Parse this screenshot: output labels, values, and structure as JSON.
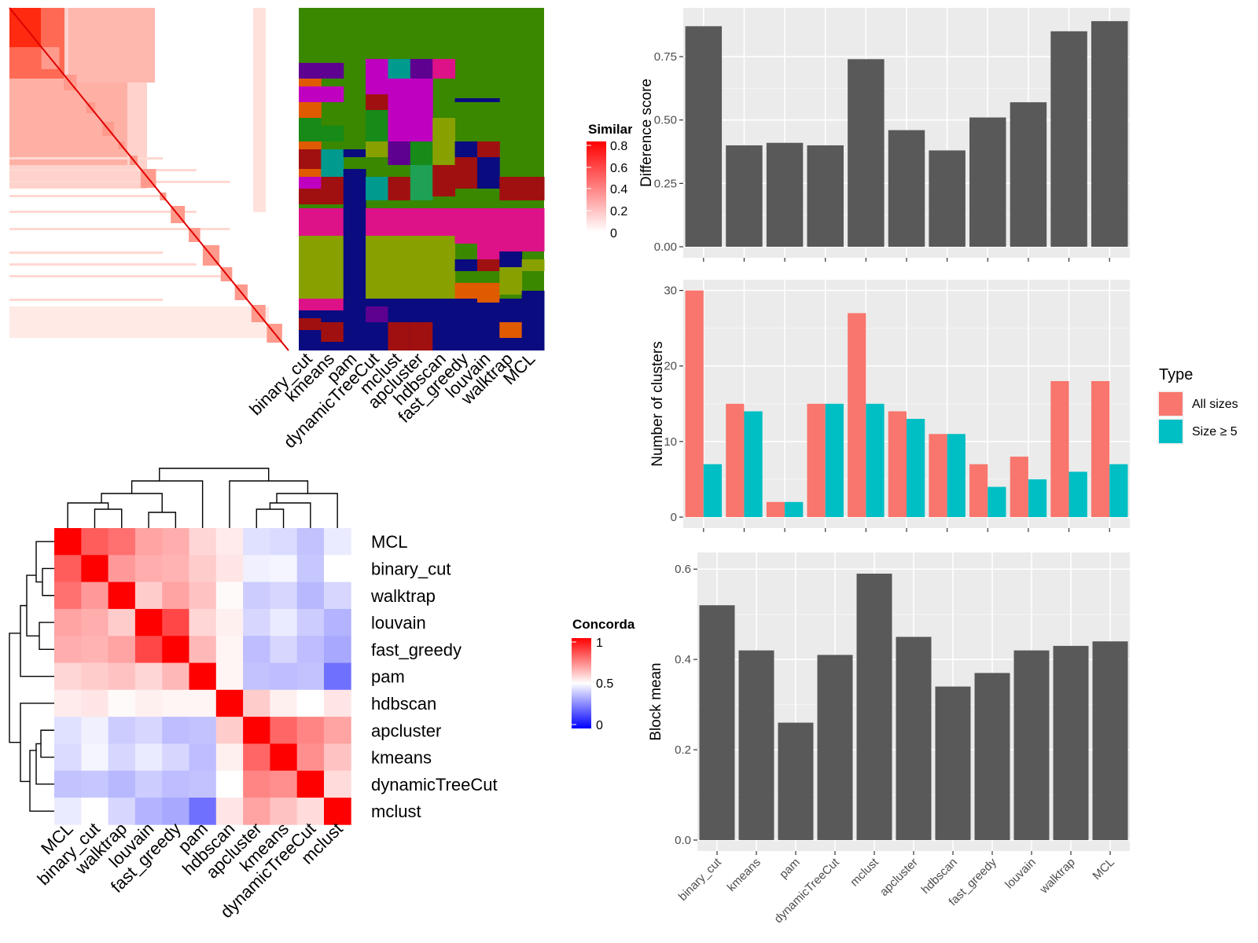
{
  "similarity_panel": {
    "legend_title": "Similarity",
    "legend_ticks": [
      "0.8",
      "0.6",
      "0.4",
      "0.2",
      "0"
    ],
    "method_labels": [
      "binary_cut",
      "kmeans",
      "pam",
      "dynamicTreeCut",
      "mclust",
      "apcluster",
      "hdbscan",
      "fast_greedy",
      "louvain",
      "walktrap",
      "MCL"
    ],
    "colors": {
      "high": "#FF0000",
      "low": "#FFFFFF"
    }
  },
  "concordance_panel": {
    "legend_title": "Concordance",
    "legend_ticks": [
      "1",
      "0.5",
      "0"
    ],
    "colors": {
      "high": "#FF0000",
      "mid": "#FFFFFF",
      "low": "#0000FF"
    }
  },
  "chart_data": [
    {
      "type": "heatmap",
      "title": "",
      "rows": [
        "MCL",
        "binary_cut",
        "walktrap",
        "louvain",
        "fast_greedy",
        "pam",
        "hdbscan",
        "apcluster",
        "kmeans",
        "dynamicTreeCut",
        "mclust"
      ],
      "columns": [
        "MCL",
        "binary_cut",
        "walktrap",
        "louvain",
        "fast_greedy",
        "pam",
        "hdbscan",
        "apcluster",
        "kmeans",
        "dynamicTreeCut",
        "mclust"
      ],
      "values": [
        [
          1.0,
          0.82,
          0.78,
          0.68,
          0.66,
          0.58,
          0.54,
          0.44,
          0.43,
          0.38,
          0.46
        ],
        [
          0.82,
          1.0,
          0.7,
          0.66,
          0.65,
          0.6,
          0.55,
          0.47,
          0.48,
          0.39,
          0.5
        ],
        [
          0.78,
          0.7,
          1.0,
          0.6,
          0.68,
          0.62,
          0.51,
          0.4,
          0.42,
          0.36,
          0.42
        ],
        [
          0.68,
          0.66,
          0.6,
          1.0,
          0.86,
          0.58,
          0.53,
          0.42,
          0.46,
          0.4,
          0.35
        ],
        [
          0.66,
          0.65,
          0.68,
          0.86,
          1.0,
          0.64,
          0.52,
          0.37,
          0.42,
          0.37,
          0.33
        ],
        [
          0.58,
          0.6,
          0.62,
          0.58,
          0.64,
          1.0,
          0.52,
          0.38,
          0.37,
          0.38,
          0.22
        ],
        [
          0.54,
          0.55,
          0.51,
          0.53,
          0.52,
          0.52,
          1.0,
          0.6,
          0.53,
          0.5,
          0.55
        ],
        [
          0.44,
          0.47,
          0.4,
          0.42,
          0.37,
          0.38,
          0.6,
          1.0,
          0.8,
          0.74,
          0.68
        ],
        [
          0.43,
          0.48,
          0.42,
          0.46,
          0.42,
          0.37,
          0.53,
          0.8,
          1.0,
          0.72,
          0.62
        ],
        [
          0.38,
          0.39,
          0.36,
          0.4,
          0.37,
          0.38,
          0.5,
          0.74,
          0.72,
          1.0,
          0.57
        ],
        [
          0.46,
          0.5,
          0.42,
          0.35,
          0.33,
          0.22,
          0.55,
          0.68,
          0.62,
          0.57,
          1.0
        ]
      ],
      "range": [
        0,
        1
      ],
      "legend_title": "Concordance"
    },
    {
      "type": "bar",
      "title": "",
      "categories": [
        "binary_cut",
        "kmeans",
        "pam",
        "dynamicTreeCut",
        "mclust",
        "apcluster",
        "hdbscan",
        "fast_greedy",
        "louvain",
        "walktrap",
        "MCL"
      ],
      "values": [
        0.87,
        0.4,
        0.41,
        0.4,
        0.74,
        0.46,
        0.38,
        0.51,
        0.57,
        0.85,
        0.89
      ],
      "xlabel": "",
      "ylabel": "Difference score",
      "ylim": [
        0,
        0.93
      ],
      "yticks": [
        "0.00",
        "0.25",
        "0.50",
        "0.75"
      ],
      "grid": true,
      "bar_color": "#595959"
    },
    {
      "type": "bar",
      "title": "",
      "categories": [
        "binary_cut",
        "kmeans",
        "pam",
        "dynamicTreeCut",
        "mclust",
        "apcluster",
        "hdbscan",
        "fast_greedy",
        "louvain",
        "walktrap",
        "MCL"
      ],
      "series": [
        {
          "name": "All sizes",
          "values": [
            30,
            15,
            2,
            15,
            27,
            14,
            11,
            7,
            8,
            18,
            18
          ],
          "color": "#F8766D"
        },
        {
          "name": "Size ≥ 5",
          "values": [
            7,
            14,
            2,
            15,
            15,
            13,
            11,
            4,
            5,
            6,
            7
          ],
          "color": "#00BFC4"
        }
      ],
      "xlabel": "",
      "ylabel": "Number of clusters",
      "ylim": [
        0,
        31
      ],
      "yticks": [
        "0",
        "10",
        "20",
        "30"
      ],
      "legend_title": "Type",
      "legend_position": "right",
      "grid": true
    },
    {
      "type": "bar",
      "title": "",
      "categories": [
        "binary_cut",
        "kmeans",
        "pam",
        "dynamicTreeCut",
        "mclust",
        "apcluster",
        "hdbscan",
        "fast_greedy",
        "louvain",
        "walktrap",
        "MCL"
      ],
      "values": [
        0.52,
        0.42,
        0.26,
        0.41,
        0.59,
        0.45,
        0.34,
        0.37,
        0.42,
        0.43,
        0.44
      ],
      "xlabel": "",
      "ylabel": "Block mean",
      "ylim": [
        0,
        0.63
      ],
      "yticks": [
        "0.0",
        "0.2",
        "0.4",
        "0.6"
      ],
      "grid": true,
      "bar_color": "#595959"
    }
  ]
}
